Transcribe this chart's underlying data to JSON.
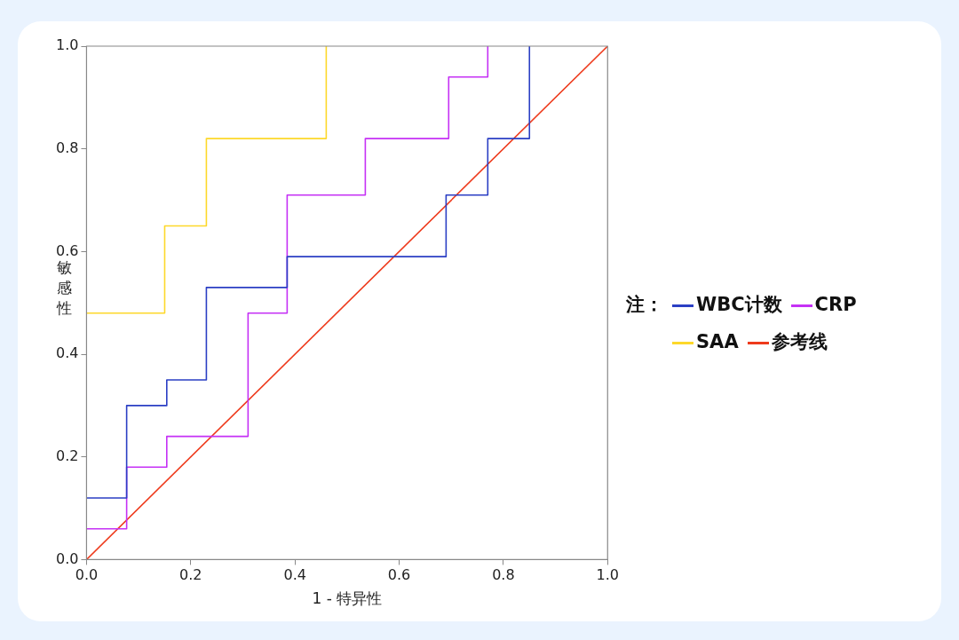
{
  "chart_data": {
    "type": "step",
    "xlabel": "1 - 特异性",
    "ylabel": "敏感性",
    "legend_title": "注：",
    "legend": "right",
    "grid": false,
    "marker": "none",
    "line_style": "solid",
    "xlim": [
      0,
      1
    ],
    "ylim": [
      0,
      1
    ],
    "xticks": [
      {
        "value": 0,
        "label": "0.0"
      },
      {
        "value": 0.2,
        "label": "0.2"
      },
      {
        "value": 0.4,
        "label": "0.4"
      },
      {
        "value": 0.6,
        "label": "0.6"
      },
      {
        "value": 0.8,
        "label": "0.8"
      },
      {
        "value": 1,
        "label": "1.0"
      }
    ],
    "yticks": [
      {
        "value": 0,
        "label": "0.0"
      },
      {
        "value": 0.2,
        "label": "0.2"
      },
      {
        "value": 0.4,
        "label": "0.4"
      },
      {
        "value": 0.6,
        "label": "0.6"
      },
      {
        "value": 0.8,
        "label": "0.8"
      },
      {
        "value": 1,
        "label": "1.0"
      }
    ],
    "series": [
      {
        "name": "WBC计数",
        "color": "#2b3fc4",
        "x": [
          0,
          0.077,
          0.154,
          0.23,
          0.385,
          0.69,
          0.77,
          0.85
        ],
        "values": [
          0.12,
          0.3,
          0.35,
          0.53,
          0.59,
          0.71,
          0.82,
          1.0
        ]
      },
      {
        "name": "CRP",
        "color": "#c531f5",
        "x": [
          0,
          0.077,
          0.154,
          0.31,
          0.385,
          0.535,
          0.695,
          0.77
        ],
        "values": [
          0.06,
          0.18,
          0.24,
          0.48,
          0.71,
          0.82,
          0.94,
          1.0
        ]
      },
      {
        "name": "SAA",
        "color": "#fdd82a",
        "x": [
          0,
          0.15,
          0.23,
          0.46
        ],
        "values": [
          0.48,
          0.65,
          0.82,
          1.0
        ]
      },
      {
        "name": "参考线",
        "color": "#ee3a1c",
        "type": "line",
        "x": [
          0,
          1
        ],
        "values": [
          0,
          1
        ]
      }
    ]
  }
}
